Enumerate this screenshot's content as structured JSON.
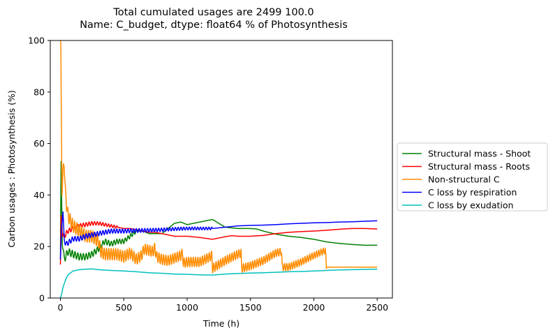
{
  "chart_data": {
    "type": "line",
    "title": [
      "Total cumulated usages are 2499    100.0",
      "Name: C_budget, dtype: float64 % of Photosynthesis"
    ],
    "xlabel": "Time (h)",
    "ylabel": "Carbon usages : Photosynthesis (%)",
    "xlim": [
      -80,
      2620
    ],
    "ylim": [
      0,
      100
    ],
    "xticks": [
      0,
      500,
      1000,
      1500,
      2000,
      2500
    ],
    "yticks": [
      0,
      20,
      40,
      60,
      80,
      100
    ],
    "grid": false,
    "legend_position": "outside-right",
    "series": [
      {
        "name": "Structural mass - Shoot",
        "color": "#008000",
        "osc_amp": 1.5,
        "osc_period": 22,
        "osc_until": 600,
        "points": [
          [
            0,
            15
          ],
          [
            5,
            53
          ],
          [
            15,
            22
          ],
          [
            30,
            15
          ],
          [
            60,
            18
          ],
          [
            100,
            17
          ],
          [
            150,
            16
          ],
          [
            200,
            16
          ],
          [
            250,
            17
          ],
          [
            300,
            19
          ],
          [
            350,
            22
          ],
          [
            400,
            21
          ],
          [
            450,
            22
          ],
          [
            500,
            22
          ],
          [
            550,
            24
          ],
          [
            600,
            26
          ],
          [
            650,
            26
          ],
          [
            700,
            25
          ],
          [
            750,
            25
          ],
          [
            800,
            25
          ],
          [
            850,
            27
          ],
          [
            900,
            29
          ],
          [
            950,
            29.5
          ],
          [
            1000,
            28.5
          ],
          [
            1050,
            29
          ],
          [
            1100,
            29.5
          ],
          [
            1150,
            30
          ],
          [
            1200,
            30.5
          ],
          [
            1250,
            29
          ],
          [
            1300,
            27.5
          ],
          [
            1400,
            27
          ],
          [
            1500,
            27
          ],
          [
            1550,
            26.8
          ],
          [
            1600,
            26
          ],
          [
            1700,
            24.8
          ],
          [
            1800,
            24
          ],
          [
            1900,
            23.5
          ],
          [
            2000,
            22.8
          ],
          [
            2100,
            21.8
          ],
          [
            2200,
            21.2
          ],
          [
            2300,
            20.8
          ],
          [
            2400,
            20.5
          ],
          [
            2500,
            20.5
          ]
        ]
      },
      {
        "name": "Structural mass - Roots",
        "color": "#ff0000",
        "osc_amp": 1.0,
        "osc_period": 22,
        "osc_until": 450,
        "points": [
          [
            0,
            13
          ],
          [
            5,
            32
          ],
          [
            15,
            25
          ],
          [
            30,
            24
          ],
          [
            60,
            26
          ],
          [
            100,
            27
          ],
          [
            150,
            28
          ],
          [
            200,
            28.5
          ],
          [
            250,
            29
          ],
          [
            300,
            29
          ],
          [
            350,
            28.5
          ],
          [
            400,
            28
          ],
          [
            450,
            27.5
          ],
          [
            500,
            27
          ],
          [
            550,
            27
          ],
          [
            600,
            26.5
          ],
          [
            650,
            26
          ],
          [
            700,
            25.5
          ],
          [
            750,
            25.5
          ],
          [
            800,
            25
          ],
          [
            900,
            24
          ],
          [
            1000,
            24
          ],
          [
            1100,
            23.5
          ],
          [
            1200,
            22.8
          ],
          [
            1300,
            23.8
          ],
          [
            1350,
            24.2
          ],
          [
            1400,
            24
          ],
          [
            1500,
            24
          ],
          [
            1600,
            24.3
          ],
          [
            1700,
            25
          ],
          [
            1800,
            25.5
          ],
          [
            1900,
            25.8
          ],
          [
            2000,
            26
          ],
          [
            2100,
            26.3
          ],
          [
            2200,
            26.7
          ],
          [
            2300,
            27
          ],
          [
            2400,
            27
          ],
          [
            2500,
            26.8
          ]
        ]
      },
      {
        "name": "Non-structural C",
        "color": "#ff8c00",
        "osc_amp": 2.5,
        "osc_period": 18,
        "osc_until": 2100,
        "points": [
          [
            0,
            100
          ],
          [
            3,
            99
          ],
          [
            12,
            42
          ],
          [
            20,
            48
          ],
          [
            30,
            53
          ],
          [
            40,
            40
          ],
          [
            60,
            32
          ],
          [
            80,
            30
          ],
          [
            100,
            28
          ],
          [
            150,
            26
          ],
          [
            200,
            24
          ],
          [
            250,
            24
          ],
          [
            300,
            22
          ],
          [
            320,
            18
          ],
          [
            350,
            17
          ],
          [
            400,
            17
          ],
          [
            450,
            17
          ],
          [
            500,
            16
          ],
          [
            550,
            17.5
          ],
          [
            600,
            15
          ],
          [
            640,
            16.5
          ],
          [
            660,
            19
          ],
          [
            700,
            18.5
          ],
          [
            730,
            18
          ],
          [
            745,
            19.5
          ],
          [
            760,
            16
          ],
          [
            800,
            15
          ],
          [
            850,
            14.5
          ],
          [
            900,
            15.5
          ],
          [
            950,
            16.5
          ],
          [
            965,
            17.5
          ],
          [
            970,
            13.5
          ],
          [
            1000,
            14
          ],
          [
            1100,
            14
          ],
          [
            1180,
            16
          ],
          [
            1195,
            16.5
          ],
          [
            1200,
            11.5
          ],
          [
            1250,
            13
          ],
          [
            1300,
            14.5
          ],
          [
            1400,
            17
          ],
          [
            1425,
            17.5
          ],
          [
            1430,
            11.5
          ],
          [
            1500,
            12.5
          ],
          [
            1600,
            14.5
          ],
          [
            1700,
            17.5
          ],
          [
            1745,
            18
          ],
          [
            1750,
            12
          ],
          [
            1800,
            12
          ],
          [
            1900,
            14
          ],
          [
            2000,
            16.5
          ],
          [
            2090,
            18.5
          ],
          [
            2100,
            12
          ],
          [
            2200,
            12
          ],
          [
            2300,
            12
          ],
          [
            2400,
            12
          ],
          [
            2500,
            12
          ]
        ]
      },
      {
        "name": "C loss by respiration",
        "color": "#0000ff",
        "osc_amp": 1.0,
        "osc_period": 22,
        "osc_until": 1200,
        "points": [
          [
            0,
            15
          ],
          [
            10,
            28
          ],
          [
            20,
            34
          ],
          [
            30,
            22
          ],
          [
            50,
            21
          ],
          [
            100,
            23
          ],
          [
            150,
            23
          ],
          [
            200,
            24
          ],
          [
            250,
            24.5
          ],
          [
            300,
            25
          ],
          [
            350,
            25.5
          ],
          [
            400,
            26
          ],
          [
            450,
            26
          ],
          [
            500,
            26
          ],
          [
            600,
            26.2
          ],
          [
            700,
            26.3
          ],
          [
            800,
            26.5
          ],
          [
            900,
            26.8
          ],
          [
            1000,
            27
          ],
          [
            1100,
            27
          ],
          [
            1200,
            27
          ],
          [
            1300,
            27.5
          ],
          [
            1400,
            28
          ],
          [
            1500,
            28.2
          ],
          [
            1600,
            28.3
          ],
          [
            1700,
            28.5
          ],
          [
            1800,
            28.8
          ],
          [
            1900,
            29
          ],
          [
            2000,
            29.2
          ],
          [
            2100,
            29.3
          ],
          [
            2200,
            29.5
          ],
          [
            2300,
            29.6
          ],
          [
            2400,
            29.8
          ],
          [
            2500,
            30
          ]
        ]
      },
      {
        "name": "C loss by exudation",
        "color": "#00bfbf",
        "osc_amp": 0,
        "osc_period": 22,
        "osc_until": 0,
        "points": [
          [
            0,
            0
          ],
          [
            10,
            1.5
          ],
          [
            20,
            4
          ],
          [
            40,
            7
          ],
          [
            60,
            9
          ],
          [
            100,
            10.5
          ],
          [
            150,
            11
          ],
          [
            200,
            11.2
          ],
          [
            250,
            11.3
          ],
          [
            300,
            11
          ],
          [
            400,
            10.7
          ],
          [
            500,
            10.5
          ],
          [
            600,
            10.2
          ],
          [
            700,
            9.8
          ],
          [
            800,
            9.6
          ],
          [
            900,
            9.3
          ],
          [
            1000,
            9.2
          ],
          [
            1100,
            9
          ],
          [
            1200,
            8.9
          ],
          [
            1300,
            9.3
          ],
          [
            1400,
            9.5
          ],
          [
            1500,
            9.7
          ],
          [
            1600,
            9.8
          ],
          [
            1700,
            10
          ],
          [
            1800,
            10.2
          ],
          [
            1900,
            10.3
          ],
          [
            2000,
            10.5
          ],
          [
            2100,
            10.7
          ],
          [
            2200,
            10.9
          ],
          [
            2300,
            11
          ],
          [
            2400,
            11.1
          ],
          [
            2500,
            11.2
          ]
        ]
      }
    ]
  }
}
